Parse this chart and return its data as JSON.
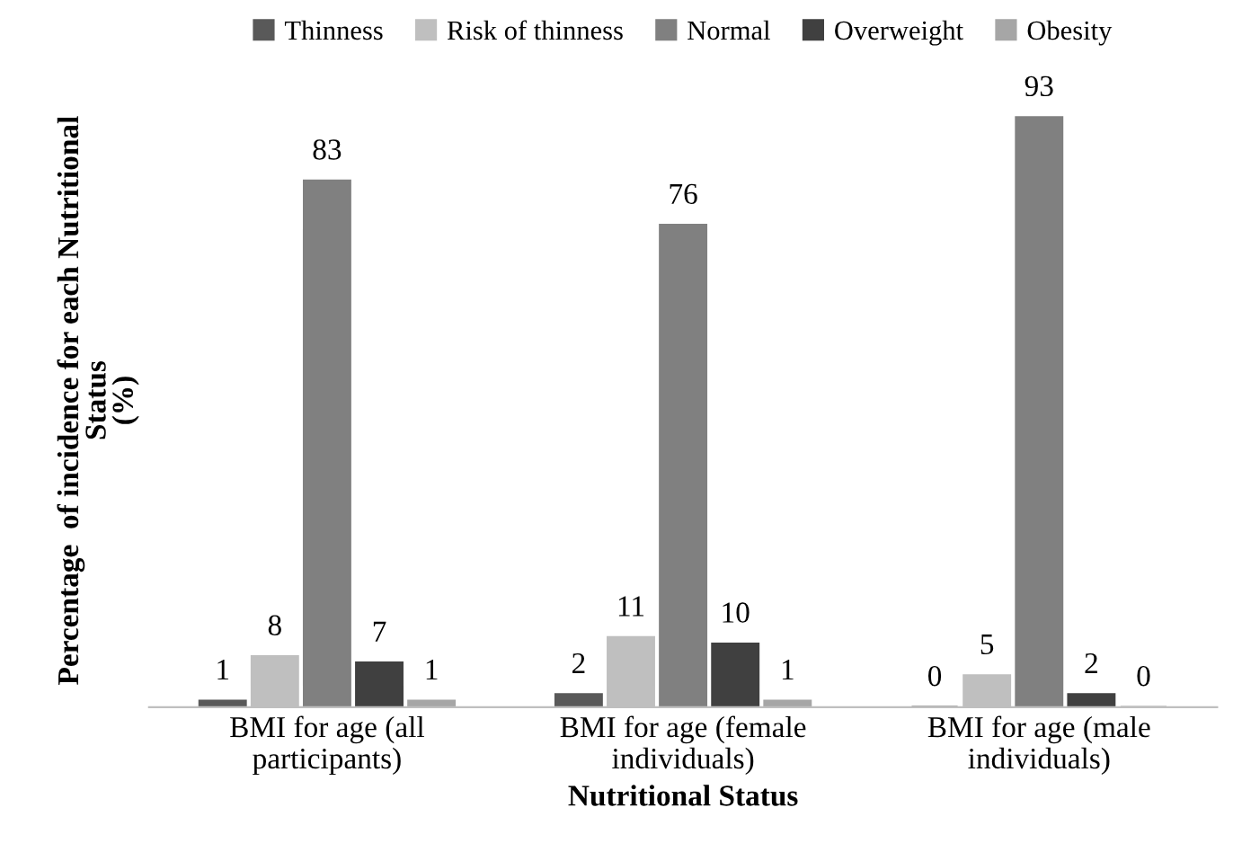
{
  "chart_data": {
    "type": "bar",
    "xlabel": "Nutritional Status",
    "ylabel": "Percentage  of incidence for each Nutritional\nStatus\n(%)",
    "categories": [
      "BMI for age (all\nparticipants)",
      "BMI for age (female\nindividuals)",
      "BMI for age (male\nindividuals)"
    ],
    "series": [
      {
        "name": "Thinness",
        "color": "#595959",
        "values": [
          1,
          2,
          0
        ]
      },
      {
        "name": "Risk of thinness",
        "color": "#bfbfbf",
        "values": [
          8,
          11,
          5
        ]
      },
      {
        "name": "Normal",
        "color": "#808080",
        "values": [
          83,
          76,
          93
        ]
      },
      {
        "name": "Overweight",
        "color": "#404040",
        "values": [
          7,
          10,
          2
        ]
      },
      {
        "name": "Obesity",
        "color": "#a6a6a6",
        "values": [
          1,
          1,
          0
        ]
      }
    ],
    "data_labels": true,
    "legend": "top",
    "grid": false
  }
}
